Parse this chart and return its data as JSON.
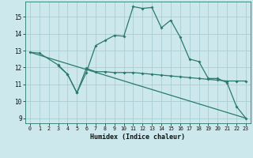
{
  "xlabel": "Humidex (Indice chaleur)",
  "bg_color": "#cce8ec",
  "line_color": "#2a7a6a",
  "grid_color": "#aacdd4",
  "xlim": [
    -0.5,
    23.5
  ],
  "ylim": [
    8.7,
    15.9
  ],
  "yticks": [
    9,
    10,
    11,
    12,
    13,
    14,
    15
  ],
  "xticks": [
    0,
    1,
    2,
    3,
    4,
    5,
    6,
    7,
    8,
    9,
    10,
    11,
    12,
    13,
    14,
    15,
    16,
    17,
    18,
    19,
    20,
    21,
    22,
    23
  ],
  "line1_x": [
    0,
    1,
    3,
    4,
    5,
    6,
    7,
    8,
    9,
    10,
    11,
    12,
    13,
    14,
    15,
    16,
    17,
    18,
    19,
    20,
    21,
    22,
    23
  ],
  "line1_y": [
    12.9,
    12.85,
    12.15,
    11.6,
    10.5,
    11.7,
    13.3,
    13.6,
    13.9,
    13.85,
    15.6,
    15.5,
    15.55,
    14.35,
    14.8,
    13.8,
    12.5,
    12.35,
    11.35,
    11.35,
    11.1,
    9.7,
    9.0
  ],
  "line2_x": [
    3,
    4,
    5,
    6,
    7,
    8,
    9,
    10,
    11,
    12,
    13,
    14,
    15,
    16,
    17,
    18,
    19,
    20,
    21,
    22,
    23
  ],
  "line2_y": [
    12.1,
    11.6,
    10.5,
    11.95,
    11.75,
    11.75,
    11.7,
    11.7,
    11.7,
    11.65,
    11.6,
    11.55,
    11.5,
    11.45,
    11.4,
    11.35,
    11.3,
    11.25,
    11.2,
    11.2,
    11.2
  ],
  "line3_x": [
    0,
    23
  ],
  "line3_y": [
    12.9,
    9.0
  ]
}
